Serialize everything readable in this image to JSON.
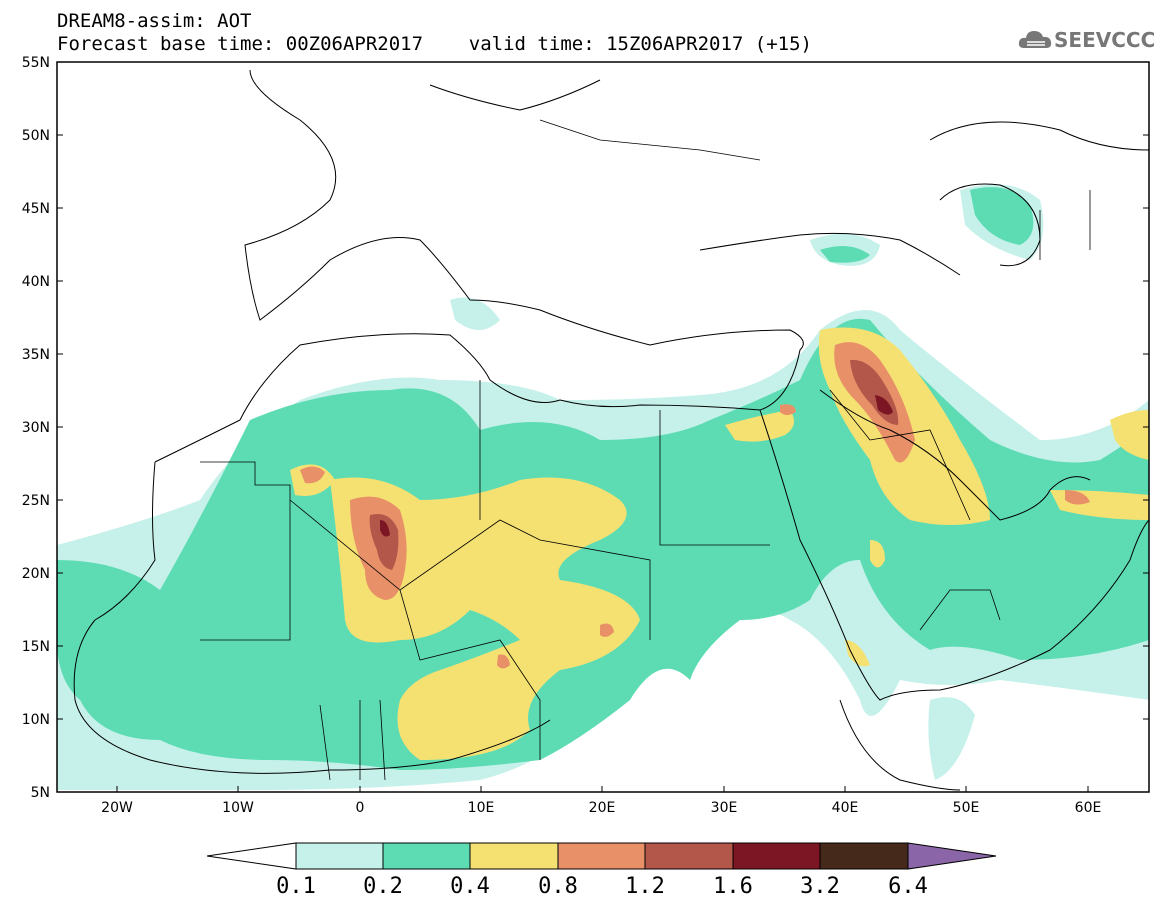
{
  "header": {
    "line1": "DREAM8-assim: AOT",
    "line2": "Forecast base time: 00Z06APR2017    valid time: 15Z06APR2017 (+15)"
  },
  "logo": {
    "name": "cloud-icon",
    "text": "SEEVCCC"
  },
  "map": {
    "lat_labels": [
      "55N",
      "50N",
      "45N",
      "40N",
      "35N",
      "30N",
      "25N",
      "20N",
      "15N",
      "10N",
      "5N"
    ],
    "lon_labels": [
      "20W",
      "10W",
      "0",
      "10E",
      "20E",
      "30E",
      "40E",
      "50E",
      "60E"
    ],
    "lon_range": [
      -25,
      65
    ],
    "lat_range": [
      5,
      55
    ]
  },
  "colorbar": {
    "labels": [
      "0.1",
      "0.2",
      "0.4",
      "0.8",
      "1.2",
      "1.6",
      "3.2",
      "6.4"
    ],
    "colors": [
      "#ffffff",
      "#c6f1ea",
      "#5ddcb4",
      "#f5e172",
      "#e89068",
      "#b3574a",
      "#7c1624",
      "#45291a",
      "#8a66a8"
    ]
  }
}
